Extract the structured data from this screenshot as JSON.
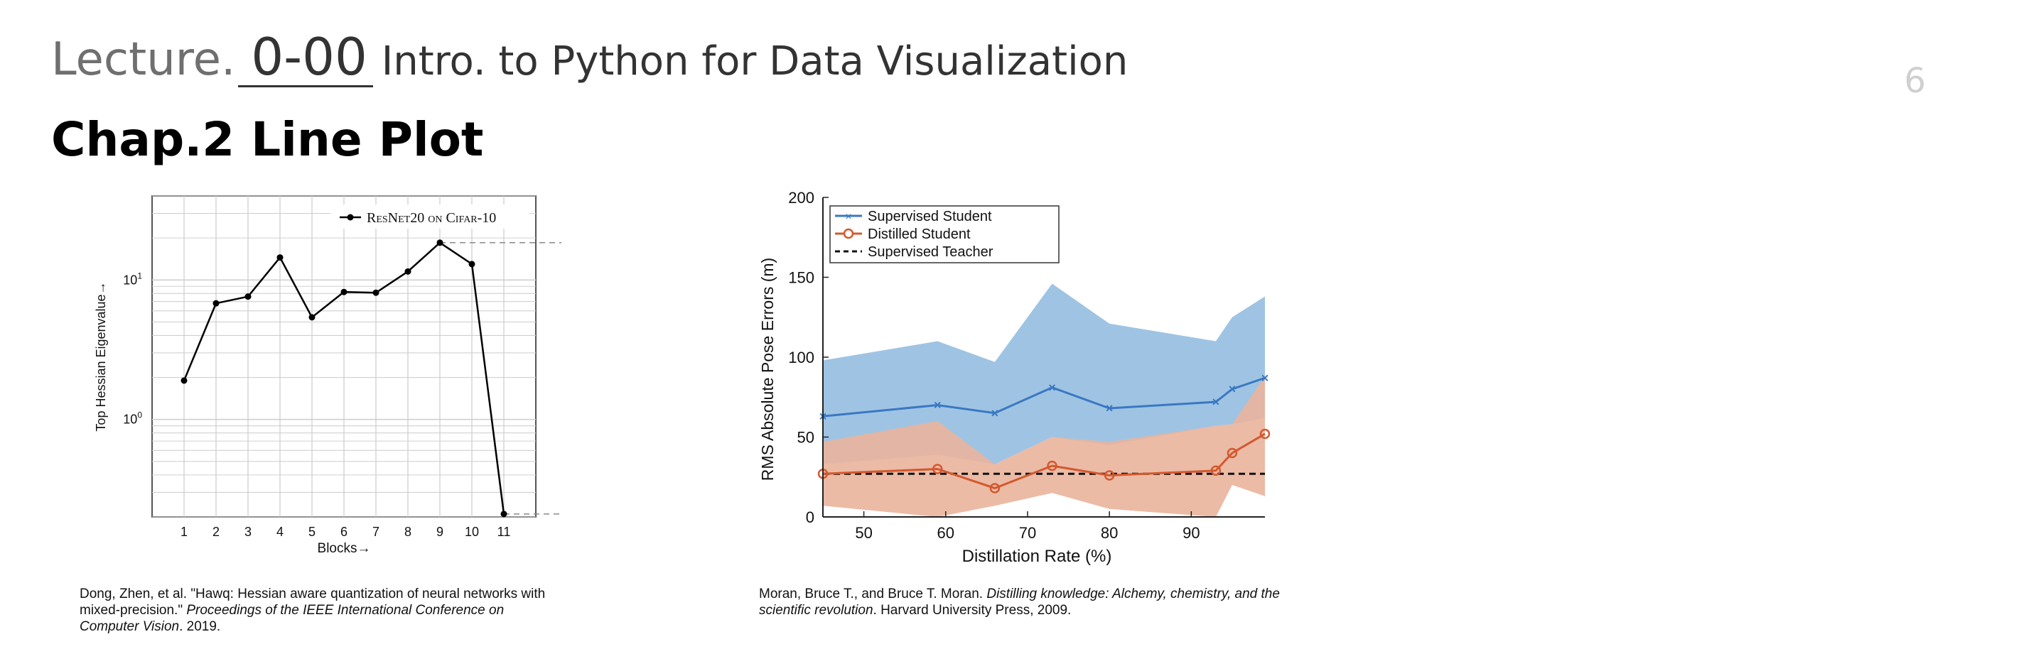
{
  "header": {
    "lecture_label": "Lecture.",
    "lecture_number": "0-00",
    "course_title": "Intro. to Python for Data Visualization",
    "page_number": "6"
  },
  "chapter_title": "Chap.2 Line Plot",
  "citations": {
    "left": {
      "plain": "Dong, Zhen, et al. \"Hawq: Hessian aware quantization of neural networks with mixed-precision.\" ",
      "italic": "Proceedings of the IEEE International Conference on Computer Vision",
      "tail": ". 2019."
    },
    "right": {
      "plain": "Moran, Bruce T., and Bruce T. Moran. ",
      "italic": "Distilling knowledge: Alchemy, chemistry, and the scientific revolution",
      "tail": ". Harvard University Press, 2009."
    }
  },
  "colors": {
    "black": "#000000",
    "blue": "#3a78c2",
    "blue_band": "#9fc4e3",
    "orange": "#d4582e",
    "orange_band": "#e9b49c",
    "grid": "#d0d0d0"
  },
  "chart_data": [
    {
      "type": "line",
      "title": "",
      "xlabel": "Blocks→",
      "ylabel": "Top Hessian Eigenvalue→",
      "yscale": "log",
      "ylim": [
        0.2,
        40
      ],
      "xlim": [
        0,
        12
      ],
      "x": [
        1,
        2,
        3,
        4,
        5,
        6,
        7,
        8,
        9,
        10,
        11
      ],
      "x_tick_labels": [
        "1",
        "2",
        "3",
        "4",
        "5",
        "6",
        "7",
        "8",
        "9",
        "10",
        "11"
      ],
      "y_tick_labels": [
        "10^0",
        "10^1"
      ],
      "series": [
        {
          "name": "ResNet20 on Cifar-10",
          "values": [
            1.9,
            6.8,
            7.6,
            14.5,
            5.4,
            8.2,
            8.1,
            11.5,
            18.5,
            13.0,
            0.21
          ]
        }
      ],
      "reference_lines": [
        18.5,
        0.21
      ],
      "grid": true,
      "legend": "top-right"
    },
    {
      "type": "line",
      "title": "",
      "xlabel": "Distillation Rate (%)",
      "ylabel": "RMS Absolute Pose Errors (m)",
      "xlim": [
        45,
        99
      ],
      "ylim": [
        0,
        200
      ],
      "x_ticks": [
        50,
        60,
        70,
        80,
        90
      ],
      "y_ticks": [
        0,
        50,
        100,
        150,
        200
      ],
      "x": [
        45,
        59,
        66,
        73,
        80,
        93,
        95,
        99
      ],
      "series": [
        {
          "name": "Supervised Student",
          "values": [
            63,
            70,
            65,
            81,
            68,
            72,
            80,
            87
          ],
          "band_upper": [
            98,
            110,
            97,
            146,
            121,
            110,
            125,
            138
          ],
          "band_lower": [
            33,
            39,
            33,
            50,
            45,
            57,
            58,
            62
          ]
        },
        {
          "name": "Distilled Student",
          "values": [
            27,
            30,
            18,
            32,
            26,
            29,
            40,
            52
          ],
          "band_upper": [
            47,
            60,
            33,
            50,
            47,
            57,
            58,
            88
          ],
          "band_lower": [
            7,
            0,
            7,
            15,
            5,
            0,
            20,
            13
          ]
        },
        {
          "name": "Supervised Teacher",
          "values": [
            27,
            27,
            27,
            27,
            27,
            27,
            27,
            27
          ]
        }
      ],
      "grid": false,
      "legend": "top-left"
    }
  ]
}
